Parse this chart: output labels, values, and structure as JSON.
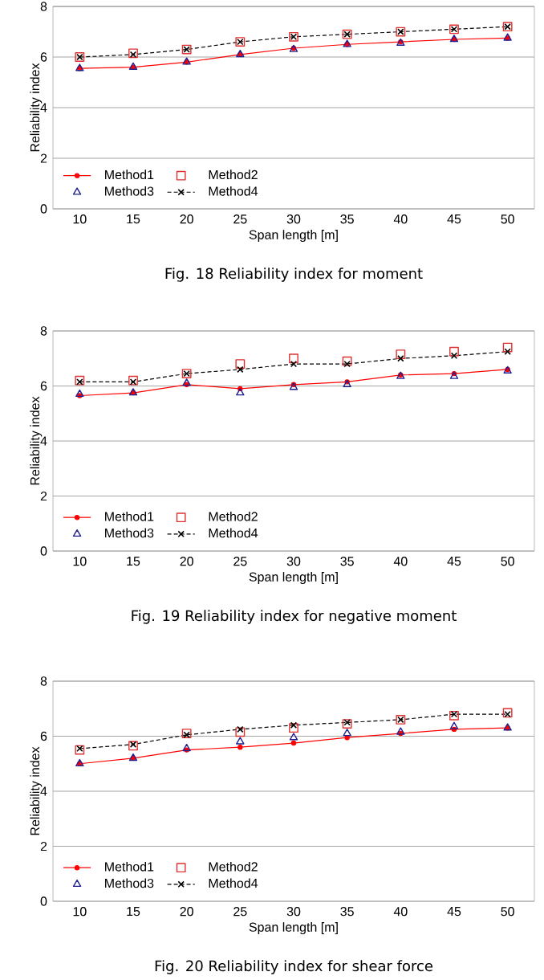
{
  "chart_data": [
    {
      "type": "line",
      "categories": [
        "10",
        "15",
        "20",
        "25",
        "30",
        "35",
        "40",
        "45",
        "50"
      ],
      "xlabel": "Span length [m]",
      "ylabel": "Reliability index",
      "ylim": [
        0,
        8
      ],
      "yticks": [
        0,
        2,
        4,
        6,
        8
      ],
      "grid": "y",
      "legend": "bottom left",
      "annotations": [
        "Fig. 18 Reliability index for moment"
      ],
      "series": [
        {
          "name": "Method1",
          "color": "#ff0000",
          "marker": "circle",
          "line_style": "solid",
          "values": [
            5.55,
            5.6,
            5.8,
            6.1,
            6.35,
            6.5,
            6.6,
            6.7,
            6.75
          ]
        },
        {
          "name": "Method2",
          "type": "scatter",
          "color": "#e03030",
          "marker": "square",
          "values": [
            6.0,
            6.15,
            6.3,
            6.6,
            6.8,
            6.9,
            7.0,
            7.1,
            7.2
          ]
        },
        {
          "name": "Method3",
          "type": "scatter",
          "color": "#1f1f8f",
          "marker": "triangle",
          "values": [
            5.55,
            5.6,
            5.8,
            6.1,
            6.3,
            6.5,
            6.55,
            6.7,
            6.75
          ]
        },
        {
          "name": "Method4",
          "color": "#000000",
          "marker": "cross",
          "line_style": "dashed",
          "values": [
            6.0,
            6.1,
            6.3,
            6.6,
            6.8,
            6.9,
            7.0,
            7.1,
            7.2
          ]
        }
      ]
    },
    {
      "type": "line",
      "categories": [
        "10",
        "15",
        "20",
        "25",
        "30",
        "35",
        "40",
        "45",
        "50"
      ],
      "xlabel": "Span length [m]",
      "ylabel": "Reliability index",
      "ylim": [
        0,
        8
      ],
      "yticks": [
        0,
        2,
        4,
        6,
        8
      ],
      "grid": "y",
      "legend": "bottom left",
      "annotations": [
        "Fig. 19 Reliability index for negative moment"
      ],
      "series": [
        {
          "name": "Method1",
          "color": "#ff0000",
          "marker": "circle",
          "line_style": "solid",
          "values": [
            5.65,
            5.75,
            6.05,
            5.9,
            6.05,
            6.15,
            6.4,
            6.45,
            6.6
          ]
        },
        {
          "name": "Method2",
          "type": "scatter",
          "color": "#e03030",
          "marker": "square",
          "values": [
            6.2,
            6.2,
            6.45,
            6.8,
            7.0,
            6.9,
            7.15,
            7.25,
            7.4
          ]
        },
        {
          "name": "Method3",
          "type": "scatter",
          "color": "#1f1f8f",
          "marker": "triangle",
          "values": [
            5.7,
            5.75,
            6.1,
            5.75,
            5.95,
            6.05,
            6.35,
            6.35,
            6.55
          ]
        },
        {
          "name": "Method4",
          "color": "#000000",
          "marker": "cross",
          "line_style": "dashed",
          "values": [
            6.15,
            6.15,
            6.45,
            6.6,
            6.8,
            6.8,
            7.0,
            7.1,
            7.25
          ]
        }
      ]
    },
    {
      "type": "line",
      "categories": [
        "10",
        "15",
        "20",
        "25",
        "30",
        "35",
        "40",
        "45",
        "50"
      ],
      "xlabel": "Span length [m]",
      "ylabel": "Reliability index",
      "ylim": [
        0,
        8
      ],
      "yticks": [
        0,
        2,
        4,
        6,
        8
      ],
      "grid": "y",
      "legend": "bottom left",
      "annotations": [
        "Fig. 20 Reliability index for shear force"
      ],
      "series": [
        {
          "name": "Method1",
          "color": "#ff0000",
          "marker": "circle",
          "line_style": "solid",
          "values": [
            5.0,
            5.2,
            5.5,
            5.6,
            5.75,
            5.95,
            6.1,
            6.25,
            6.3
          ]
        },
        {
          "name": "Method2",
          "type": "scatter",
          "color": "#e03030",
          "marker": "square",
          "values": [
            5.5,
            5.65,
            6.1,
            6.15,
            6.3,
            6.45,
            6.6,
            6.75,
            6.85
          ]
        },
        {
          "name": "Method3",
          "type": "scatter",
          "color": "#1f1f8f",
          "marker": "triangle",
          "values": [
            5.0,
            5.2,
            5.55,
            5.8,
            5.95,
            6.1,
            6.15,
            6.35,
            6.3
          ]
        },
        {
          "name": "Method4",
          "color": "#000000",
          "marker": "cross",
          "line_style": "dashed",
          "values": [
            5.55,
            5.7,
            6.05,
            6.25,
            6.4,
            6.5,
            6.6,
            6.8,
            6.8
          ]
        }
      ]
    }
  ]
}
